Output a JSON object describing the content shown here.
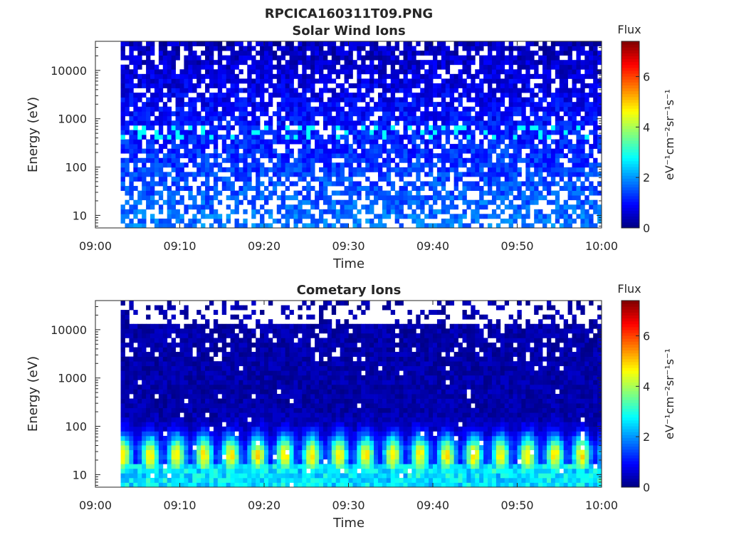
{
  "figure_title": "RPCICA160311T09.PNG",
  "chart_data": [
    {
      "type": "heatmap",
      "title": "Solar Wind Ions",
      "xlabel": "Time",
      "ylabel": "Energy (eV)",
      "x_ticks": [
        "09:00",
        "09:10",
        "09:20",
        "09:30",
        "09:40",
        "09:50",
        "10:00"
      ],
      "x_range_minutes": [
        0,
        60
      ],
      "data_start_minute": 3,
      "y_scale": "log",
      "y_ticks": [
        10,
        100,
        1000,
        10000
      ],
      "y_tick_labels": [
        "10",
        "100",
        "1000",
        "10000"
      ],
      "y_range": [
        5.5,
        40000
      ],
      "colorbar": {
        "label": "Flux",
        "unit": "eV⁻¹cm⁻²sr⁻¹s⁻¹",
        "range": [
          0,
          7.4
        ],
        "ticks": [
          "0",
          "2",
          "4",
          "6"
        ],
        "colormap": "jet"
      },
      "description_profile": {
        "low_energy_flux": 1.8,
        "high_energy_flux": 0.4,
        "hotspot_energy_eV": 500,
        "hotspot_flux": 2.8
      }
    },
    {
      "type": "heatmap",
      "title": "Cometary Ions",
      "xlabel": "Time",
      "ylabel": "Energy (eV)",
      "x_ticks": [
        "09:00",
        "09:10",
        "09:20",
        "09:30",
        "09:40",
        "09:50",
        "10:00"
      ],
      "x_range_minutes": [
        0,
        60
      ],
      "data_start_minute": 3,
      "y_scale": "log",
      "y_ticks": [
        10,
        100,
        1000,
        10000
      ],
      "y_tick_labels": [
        "10",
        "100",
        "1000",
        "10000"
      ],
      "y_range": [
        5.5,
        40000
      ],
      "colorbar": {
        "label": "Flux",
        "unit": "eV⁻¹cm⁻²sr⁻¹s⁻¹",
        "range": [
          0,
          7.4
        ],
        "ticks": [
          "0",
          "2",
          "4",
          "6"
        ],
        "colormap": "jet"
      },
      "description_profile": {
        "peak_energy_eV": 25,
        "peak_flux": 4.8,
        "periodic_peak_interval_minutes": 3.2,
        "high_energy_flux": 0.3
      }
    }
  ]
}
